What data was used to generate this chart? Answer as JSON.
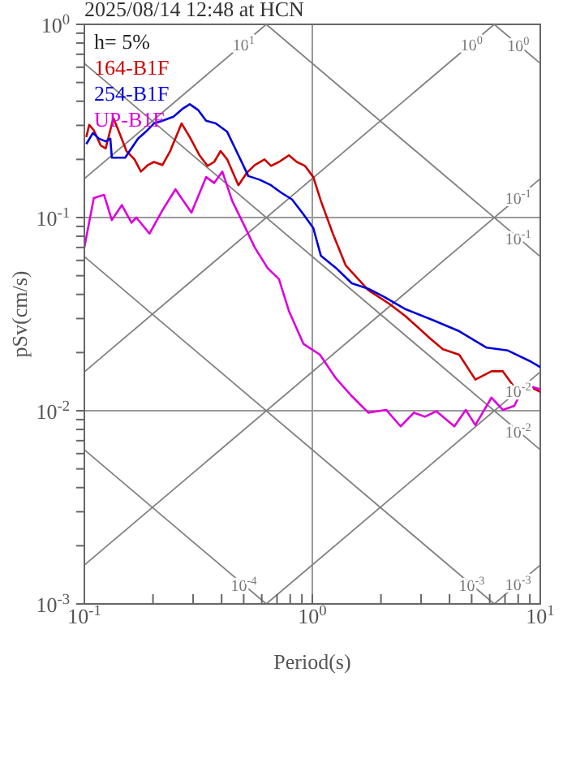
{
  "chart_data": {
    "type": "line",
    "title": "2025/08/14 12:48 at HCN",
    "xlabel": "Period(s)",
    "ylabel": "pSv(cm/s)",
    "log": "xy",
    "grid": true,
    "legend": "top left",
    "xlim": [
      0.1,
      10
    ],
    "ylim": [
      0.001,
      1
    ],
    "xticks": [
      {
        "value": 0.1,
        "label": "10$^{-1}$"
      },
      {
        "value": 0.2,
        "label": null
      },
      {
        "value": 0.3,
        "label": null
      },
      {
        "value": 0.4,
        "label": null
      },
      {
        "value": 0.5,
        "label": null
      },
      {
        "value": 0.6,
        "label": null
      },
      {
        "value": 0.7,
        "label": null
      },
      {
        "value": 0.8,
        "label": null
      },
      {
        "value": 0.9,
        "label": null
      },
      {
        "value": 1,
        "label": "10$^{0}$"
      },
      {
        "value": 2,
        "label": null
      },
      {
        "value": 3,
        "label": null
      },
      {
        "value": 4,
        "label": null
      },
      {
        "value": 5,
        "label": null
      },
      {
        "value": 6,
        "label": null
      },
      {
        "value": 7,
        "label": null
      },
      {
        "value": 8,
        "label": null
      },
      {
        "value": 9,
        "label": null
      },
      {
        "value": 10,
        "label": "10$^{1}$"
      }
    ],
    "yticks": [
      {
        "value": 0.001,
        "label": "10$^{-3}$"
      },
      {
        "value": 0.002,
        "label": null
      },
      {
        "value": 0.003,
        "label": null
      },
      {
        "value": 0.004,
        "label": null
      },
      {
        "value": 0.005,
        "label": null
      },
      {
        "value": 0.006,
        "label": null
      },
      {
        "value": 0.007,
        "label": null
      },
      {
        "value": 0.008,
        "label": null
      },
      {
        "value": 0.009,
        "label": null
      },
      {
        "value": 0.01,
        "label": "10$^{-2}$"
      },
      {
        "value": 0.02,
        "label": null
      },
      {
        "value": 0.03,
        "label": null
      },
      {
        "value": 0.04,
        "label": null
      },
      {
        "value": 0.05,
        "label": null
      },
      {
        "value": 0.06,
        "label": null
      },
      {
        "value": 0.07,
        "label": null
      },
      {
        "value": 0.08,
        "label": null
      },
      {
        "value": 0.09,
        "label": null
      },
      {
        "value": 0.1,
        "label": "10$^{-1}$"
      },
      {
        "value": 0.2,
        "label": null
      },
      {
        "value": 0.3,
        "label": null
      },
      {
        "value": 0.4,
        "label": null
      },
      {
        "value": 0.5,
        "label": null
      },
      {
        "value": 0.6,
        "label": null
      },
      {
        "value": 0.7,
        "label": null
      },
      {
        "value": 0.8,
        "label": null
      },
      {
        "value": 0.9,
        "label": null
      },
      {
        "value": 1,
        "label": "10$^{0}$"
      }
    ],
    "series": [
      {
        "color": "#808080",
        "x": [
          0.1,
          0.628
        ],
        "values": [
          0.159,
          1
        ]
      },
      {
        "color": "#808080",
        "x": [
          0.1,
          6.28
        ],
        "values": [
          0.0159,
          1
        ]
      },
      {
        "color": "#808080",
        "x": [
          0.1,
          10
        ],
        "values": [
          0.00159,
          0.159
        ]
      },
      {
        "color": "#808080",
        "x": [
          0.628,
          10
        ],
        "values": [
          0.001,
          0.0159
        ]
      },
      {
        "color": "#808080",
        "x": [
          6.28,
          10
        ],
        "values": [
          0.001,
          0.00159
        ]
      },
      {
        "color": "#808080",
        "x": [
          6.28,
          10
        ],
        "values": [
          1,
          0.628
        ]
      },
      {
        "color": "#808080",
        "x": [
          0.628,
          10
        ],
        "values": [
          1,
          0.0628
        ]
      },
      {
        "color": "#808080",
        "x": [
          0.1,
          10
        ],
        "values": [
          0.628,
          0.00628
        ]
      },
      {
        "color": "#808080",
        "x": [
          0.1,
          6.28
        ],
        "values": [
          0.0628,
          0.001
        ]
      },
      {
        "color": "#808080",
        "x": [
          0.1,
          0.628
        ],
        "values": [
          0.00628,
          0.001
        ]
      },
      {
        "name": "164-B1F",
        "color": "#cc0000",
        "x": [
          0.102,
          0.105,
          0.11,
          0.118,
          0.124,
          0.134,
          0.141,
          0.153,
          0.166,
          0.177,
          0.19,
          0.202,
          0.22,
          0.238,
          0.267,
          0.29,
          0.32,
          0.347,
          0.371,
          0.396,
          0.423,
          0.474,
          0.515,
          0.559,
          0.617,
          0.659,
          0.714,
          0.789,
          0.855,
          0.929,
          1.01,
          1.09,
          1.23,
          1.4,
          1.76,
          2.18,
          2.57,
          3.28,
          3.74,
          4.41,
          5.19,
          6.11,
          6.85,
          7.82,
          9.06,
          10
        ],
        "values": [
          0.261,
          0.302,
          0.283,
          0.236,
          0.228,
          0.327,
          0.283,
          0.221,
          0.2,
          0.173,
          0.187,
          0.194,
          0.187,
          0.221,
          0.307,
          0.261,
          0.21,
          0.185,
          0.194,
          0.221,
          0.2,
          0.147,
          0.17,
          0.187,
          0.2,
          0.185,
          0.194,
          0.21,
          0.194,
          0.185,
          0.162,
          0.122,
          0.0826,
          0.0566,
          0.0421,
          0.0357,
          0.0308,
          0.0237,
          0.0208,
          0.0195,
          0.0145,
          0.016,
          0.016,
          0.0129,
          0.0133,
          0.0125
        ]
      },
      {
        "name": "254-B1F",
        "color": "#0000dd",
        "x": [
          0.102,
          0.109,
          0.116,
          0.124,
          0.13,
          0.132,
          0.151,
          0.158,
          0.172,
          0.186,
          0.202,
          0.22,
          0.246,
          0.271,
          0.29,
          0.315,
          0.342,
          0.377,
          0.423,
          0.474,
          0.524,
          0.587,
          0.659,
          0.727,
          0.815,
          0.914,
          1.01,
          1.09,
          1.27,
          1.49,
          1.76,
          2.07,
          2.57,
          3.39,
          4.41,
          5.82,
          7.21,
          9.06,
          10
        ],
        "values": [
          0.24,
          0.274,
          0.256,
          0.248,
          0.256,
          0.204,
          0.204,
          0.221,
          0.256,
          0.278,
          0.307,
          0.317,
          0.333,
          0.367,
          0.386,
          0.361,
          0.317,
          0.307,
          0.278,
          0.21,
          0.164,
          0.157,
          0.147,
          0.135,
          0.124,
          0.104,
          0.0882,
          0.0635,
          0.0548,
          0.0457,
          0.0428,
          0.0388,
          0.0335,
          0.0294,
          0.0258,
          0.0212,
          0.0205,
          0.018,
          0.0168
        ]
      },
      {
        "name": "UP-B1F",
        "color": "#dd00dd",
        "x": [
          0.1,
          0.11,
          0.122,
          0.132,
          0.146,
          0.161,
          0.169,
          0.193,
          0.22,
          0.251,
          0.295,
          0.342,
          0.371,
          0.403,
          0.445,
          0.499,
          0.559,
          0.637,
          0.714,
          0.789,
          0.914,
          1.08,
          1.27,
          1.49,
          1.76,
          2.11,
          2.44,
          2.79,
          3.12,
          3.5,
          4.2,
          4.71,
          5.19,
          6.11,
          6.85,
          7.69,
          8.36,
          9.21,
          10
        ],
        "values": [
          0.07,
          0.126,
          0.131,
          0.097,
          0.116,
          0.0941,
          0.1,
          0.0826,
          0.109,
          0.14,
          0.106,
          0.162,
          0.151,
          0.173,
          0.122,
          0.0926,
          0.07,
          0.0547,
          0.048,
          0.0329,
          0.0222,
          0.0195,
          0.0147,
          0.0119,
          0.00977,
          0.0101,
          0.0083,
          0.00977,
          0.00931,
          0.00994,
          0.0083,
          0.0101,
          0.00843,
          0.0117,
          0.0101,
          0.0106,
          0.0129,
          0.0133,
          0.0129
        ]
      }
    ],
    "annotations": [
      "h= 5%",
      {
        "text": "10$^{1}$",
        "x": 0.5,
        "y": 0.796
      },
      {
        "text": "10$^{0}$",
        "x": 5,
        "y": 0.796
      },
      {
        "text": "10$^{0}$",
        "x": 8,
        "y": 0.785
      },
      {
        "text": "10$^{-1}$",
        "x": 8,
        "y": 0.127
      },
      {
        "text": "10$^{-1}$",
        "x": 8,
        "y": 0.0785
      },
      {
        "text": "10$^{-2}$",
        "x": 8,
        "y": 0.0127
      },
      {
        "text": "10$^{-2}$",
        "x": 8,
        "y": 0.00785
      },
      {
        "text": "10$^{-4}$",
        "x": 0.5,
        "y": 0.00126
      },
      {
        "text": "10$^{-3}$",
        "x": 5,
        "y": 0.00126
      },
      {
        "text": "10$^{-3}$",
        "x": 8,
        "y": 0.00127
      }
    ]
  }
}
